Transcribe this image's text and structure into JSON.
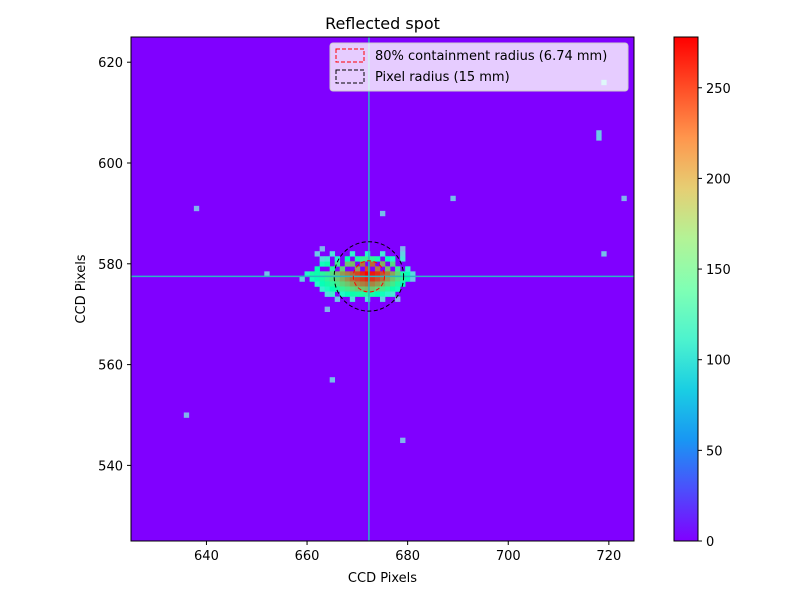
{
  "chart_data": {
    "type": "heatmap",
    "title": "Reflected spot",
    "xlabel": "CCD Pixels",
    "ylabel": "CCD Pixels",
    "xlim": [
      625,
      725
    ],
    "ylim": [
      525,
      625
    ],
    "xticks": [
      640,
      660,
      680,
      700,
      720
    ],
    "yticks": [
      540,
      560,
      580,
      600,
      620
    ],
    "background_value": 0,
    "colorbar": {
      "colormap": "rainbow",
      "range": [
        0,
        278
      ],
      "ticks": [
        0,
        50,
        100,
        150,
        200,
        250
      ]
    },
    "crosshair": {
      "x": 672.3,
      "y": 577.5,
      "color": "#2bb7c2"
    },
    "circles": [
      {
        "label": "80% containment radius (6.74 mm)",
        "center": [
          672.3,
          577.5
        ],
        "radius": 3.1,
        "color": "#ff0000",
        "style": "dashed"
      },
      {
        "label": "Pixel radius (15 mm)",
        "center": [
          672.3,
          577.5
        ],
        "radius": 6.9,
        "color": "#000000",
        "style": "dashed"
      }
    ],
    "legend_position": "upper right",
    "spot": {
      "center": [
        672.3,
        577.5
      ],
      "pixels": [
        {
          "x": 661,
          "y": 578,
          "v": 150
        },
        {
          "x": 662,
          "y": 579,
          "v": 140
        },
        {
          "x": 663,
          "y": 580,
          "v": 130
        },
        {
          "x": 664,
          "y": 580,
          "v": 145
        },
        {
          "x": 665,
          "y": 579,
          "v": 160
        },
        {
          "x": 666,
          "y": 580,
          "v": 175
        },
        {
          "x": 667,
          "y": 579,
          "v": 190
        },
        {
          "x": 668,
          "y": 580,
          "v": 200
        },
        {
          "x": 669,
          "y": 580,
          "v": 205
        },
        {
          "x": 670,
          "y": 579,
          "v": 215
        },
        {
          "x": 671,
          "y": 580,
          "v": 235
        },
        {
          "x": 672,
          "y": 579,
          "v": 250
        },
        {
          "x": 673,
          "y": 580,
          "v": 240
        },
        {
          "x": 674,
          "y": 579,
          "v": 230
        },
        {
          "x": 675,
          "y": 580,
          "v": 210
        },
        {
          "x": 676,
          "y": 579,
          "v": 200
        },
        {
          "x": 677,
          "y": 580,
          "v": 185
        },
        {
          "x": 678,
          "y": 579,
          "v": 170
        },
        {
          "x": 679,
          "y": 578,
          "v": 150
        },
        {
          "x": 680,
          "y": 578,
          "v": 135
        },
        {
          "x": 667,
          "y": 578,
          "v": 220
        },
        {
          "x": 668,
          "y": 578,
          "v": 230
        },
        {
          "x": 669,
          "y": 578,
          "v": 240
        },
        {
          "x": 670,
          "y": 578,
          "v": 255
        },
        {
          "x": 671,
          "y": 578,
          "v": 265
        },
        {
          "x": 672,
          "y": 578,
          "v": 278
        },
        {
          "x": 673,
          "y": 578,
          "v": 270
        },
        {
          "x": 674,
          "y": 578,
          "v": 262
        },
        {
          "x": 675,
          "y": 578,
          "v": 250
        },
        {
          "x": 676,
          "y": 578,
          "v": 235
        },
        {
          "x": 677,
          "y": 578,
          "v": 215
        },
        {
          "x": 678,
          "y": 578,
          "v": 190
        },
        {
          "x": 666,
          "y": 578,
          "v": 205
        },
        {
          "x": 665,
          "y": 578,
          "v": 185
        },
        {
          "x": 664,
          "y": 578,
          "v": 170
        },
        {
          "x": 663,
          "y": 578,
          "v": 160
        },
        {
          "x": 662,
          "y": 578,
          "v": 145
        },
        {
          "x": 660,
          "y": 578,
          "v": 120
        },
        {
          "x": 661,
          "y": 577,
          "v": 130
        },
        {
          "x": 662,
          "y": 577,
          "v": 135
        },
        {
          "x": 663,
          "y": 577,
          "v": 150
        },
        {
          "x": 664,
          "y": 577,
          "v": 165
        },
        {
          "x": 665,
          "y": 577,
          "v": 180
        },
        {
          "x": 666,
          "y": 577,
          "v": 195
        },
        {
          "x": 667,
          "y": 577,
          "v": 210
        },
        {
          "x": 668,
          "y": 577,
          "v": 225
        },
        {
          "x": 669,
          "y": 577,
          "v": 240
        },
        {
          "x": 670,
          "y": 577,
          "v": 250
        },
        {
          "x": 671,
          "y": 577,
          "v": 258
        },
        {
          "x": 672,
          "y": 577,
          "v": 266
        },
        {
          "x": 673,
          "y": 577,
          "v": 260
        },
        {
          "x": 674,
          "y": 577,
          "v": 250
        },
        {
          "x": 675,
          "y": 577,
          "v": 238
        },
        {
          "x": 676,
          "y": 577,
          "v": 220
        },
        {
          "x": 677,
          "y": 577,
          "v": 200
        },
        {
          "x": 678,
          "y": 577,
          "v": 180
        },
        {
          "x": 679,
          "y": 577,
          "v": 160
        },
        {
          "x": 680,
          "y": 577,
          "v": 140
        },
        {
          "x": 662,
          "y": 576,
          "v": 120
        },
        {
          "x": 663,
          "y": 576,
          "v": 135
        },
        {
          "x": 664,
          "y": 576,
          "v": 150
        },
        {
          "x": 665,
          "y": 576,
          "v": 160
        },
        {
          "x": 666,
          "y": 576,
          "v": 175
        },
        {
          "x": 667,
          "y": 576,
          "v": 190
        },
        {
          "x": 668,
          "y": 576,
          "v": 200
        },
        {
          "x": 669,
          "y": 576,
          "v": 215
        },
        {
          "x": 670,
          "y": 576,
          "v": 225
        },
        {
          "x": 671,
          "y": 576,
          "v": 232
        },
        {
          "x": 672,
          "y": 576,
          "v": 238
        },
        {
          "x": 673,
          "y": 576,
          "v": 230
        },
        {
          "x": 674,
          "y": 576,
          "v": 220
        },
        {
          "x": 675,
          "y": 576,
          "v": 205
        },
        {
          "x": 676,
          "y": 576,
          "v": 190
        },
        {
          "x": 677,
          "y": 576,
          "v": 175
        },
        {
          "x": 678,
          "y": 576,
          "v": 155
        },
        {
          "x": 679,
          "y": 576,
          "v": 135
        },
        {
          "x": 663,
          "y": 575,
          "v": 110
        },
        {
          "x": 664,
          "y": 575,
          "v": 125
        },
        {
          "x": 665,
          "y": 575,
          "v": 140
        },
        {
          "x": 666,
          "y": 575,
          "v": 150
        },
        {
          "x": 667,
          "y": 575,
          "v": 165
        },
        {
          "x": 668,
          "y": 575,
          "v": 175
        },
        {
          "x": 669,
          "y": 575,
          "v": 185
        },
        {
          "x": 670,
          "y": 575,
          "v": 195
        },
        {
          "x": 671,
          "y": 575,
          "v": 200
        },
        {
          "x": 672,
          "y": 575,
          "v": 205
        },
        {
          "x": 673,
          "y": 575,
          "v": 198
        },
        {
          "x": 674,
          "y": 575,
          "v": 188
        },
        {
          "x": 675,
          "y": 575,
          "v": 175
        },
        {
          "x": 676,
          "y": 575,
          "v": 160
        },
        {
          "x": 677,
          "y": 575,
          "v": 145
        },
        {
          "x": 678,
          "y": 575,
          "v": 130
        },
        {
          "x": 664,
          "y": 574,
          "v": 95
        },
        {
          "x": 665,
          "y": 574,
          "v": 105
        },
        {
          "x": 667,
          "y": 574,
          "v": 120
        },
        {
          "x": 668,
          "y": 574,
          "v": 135
        },
        {
          "x": 669,
          "y": 574,
          "v": 145
        },
        {
          "x": 670,
          "y": 574,
          "v": 150
        },
        {
          "x": 671,
          "y": 574,
          "v": 155
        },
        {
          "x": 672,
          "y": 574,
          "v": 160
        },
        {
          "x": 673,
          "y": 574,
          "v": 150
        },
        {
          "x": 674,
          "y": 574,
          "v": 140
        },
        {
          "x": 675,
          "y": 574,
          "v": 130
        },
        {
          "x": 676,
          "y": 574,
          "v": 115
        },
        {
          "x": 677,
          "y": 574,
          "v": 100
        },
        {
          "x": 666,
          "y": 573,
          "v": 80
        },
        {
          "x": 669,
          "y": 573,
          "v": 95
        },
        {
          "x": 672,
          "y": 573,
          "v": 100
        },
        {
          "x": 675,
          "y": 573,
          "v": 85
        },
        {
          "x": 678,
          "y": 573,
          "v": 70
        },
        {
          "x": 663,
          "y": 581,
          "v": 90
        },
        {
          "x": 664,
          "y": 581,
          "v": 105
        },
        {
          "x": 666,
          "y": 581,
          "v": 120
        },
        {
          "x": 668,
          "y": 581,
          "v": 135
        },
        {
          "x": 670,
          "y": 581,
          "v": 150
        },
        {
          "x": 671,
          "y": 581,
          "v": 165
        },
        {
          "x": 672,
          "y": 581,
          "v": 175
        },
        {
          "x": 673,
          "y": 581,
          "v": 165
        },
        {
          "x": 674,
          "y": 581,
          "v": 150
        },
        {
          "x": 676,
          "y": 581,
          "v": 135
        },
        {
          "x": 677,
          "y": 581,
          "v": 120
        },
        {
          "x": 679,
          "y": 581,
          "v": 100
        },
        {
          "x": 662,
          "y": 582,
          "v": 80
        },
        {
          "x": 665,
          "y": 582,
          "v": 95
        },
        {
          "x": 669,
          "y": 582,
          "v": 110
        },
        {
          "x": 672,
          "y": 582,
          "v": 120
        },
        {
          "x": 675,
          "y": 582,
          "v": 100
        },
        {
          "x": 679,
          "y": 582,
          "v": 85
        },
        {
          "x": 663,
          "y": 583,
          "v": 70
        },
        {
          "x": 679,
          "y": 583,
          "v": 70
        },
        {
          "x": 681,
          "y": 578,
          "v": 90
        },
        {
          "x": 680,
          "y": 579,
          "v": 110
        },
        {
          "x": 681,
          "y": 577,
          "v": 80
        },
        {
          "x": 659,
          "y": 577,
          "v": 85
        }
      ]
    },
    "hot_pixels": [
      {
        "x": 638,
        "y": 591,
        "v": 70
      },
      {
        "x": 652,
        "y": 578,
        "v": 75
      },
      {
        "x": 664,
        "y": 571,
        "v": 70
      },
      {
        "x": 665,
        "y": 557,
        "v": 75
      },
      {
        "x": 636,
        "y": 550,
        "v": 70
      },
      {
        "x": 675,
        "y": 590,
        "v": 75
      },
      {
        "x": 689,
        "y": 593,
        "v": 75
      },
      {
        "x": 679,
        "y": 545,
        "v": 70
      },
      {
        "x": 718,
        "y": 606,
        "v": 80
      },
      {
        "x": 718,
        "y": 605,
        "v": 80
      },
      {
        "x": 719,
        "y": 582,
        "v": 75
      },
      {
        "x": 723,
        "y": 593,
        "v": 70
      },
      {
        "x": 719,
        "y": 616,
        "v": 90
      }
    ]
  }
}
